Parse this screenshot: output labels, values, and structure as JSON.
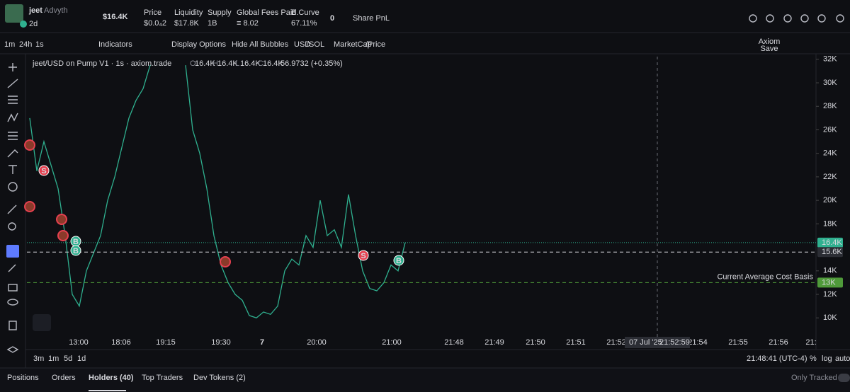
{
  "header": {
    "name": "jeet",
    "handle": "Advyth",
    "age": "2d",
    "market_cap": "$16.4K",
    "stats": [
      {
        "label": "Price",
        "value": "$0.0₄2"
      },
      {
        "label": "Liquidity",
        "value": "$17.8K"
      },
      {
        "label": "Supply",
        "value": "1B"
      },
      {
        "label": "Global Fees Paid",
        "value": "≡ 8.02"
      },
      {
        "label": "B.Curve",
        "value": "67.11%"
      }
    ],
    "watch_count": "0",
    "share": "Share PnL"
  },
  "toolbar": {
    "intervals": [
      "1m",
      "24h",
      "1s"
    ],
    "indicators": "Indicators",
    "display": "Display Options",
    "hide": "Hide All Bubbles",
    "currency": [
      "USD",
      "/SOL"
    ],
    "mode": [
      "MarketCap",
      "/Price"
    ],
    "layout": "Axiom",
    "save": "Save"
  },
  "chart_data": {
    "type": "line",
    "title": "jeet/USD on Pump V1 · 1s · axiom.trade",
    "ohlc": [
      {
        "key": "O",
        "value": "16.4K"
      },
      {
        "key": "H",
        "value": "16.4K"
      },
      {
        "key": "L",
        "value": "16.4K"
      },
      {
        "key": "C",
        "value": "16.4K"
      }
    ],
    "change": "56.9732 (+0.35%)",
    "color": "#2fb08f",
    "values": [
      27000,
      22500,
      25000,
      23000,
      21000,
      17000,
      12000,
      11000,
      14000,
      15500,
      17000,
      20000,
      22000,
      24500,
      27000,
      28500,
      29500,
      31500,
      null,
      null,
      null,
      null,
      31500,
      26000,
      24000,
      21000,
      17000,
      14500,
      13000,
      12000,
      11500,
      10200,
      10000,
      10500,
      10300,
      11000,
      14000,
      15000,
      14500,
      17000,
      16000,
      20000,
      17000,
      17500,
      16000,
      20500,
      17000,
      14000,
      12500,
      12300,
      13000,
      14500,
      14000,
      16400
    ],
    "ylim": [
      8750,
      32350
    ],
    "yticks": [
      {
        "value": 10000,
        "label": "10K"
      },
      {
        "value": 12000,
        "label": "12K"
      },
      {
        "value": 14000,
        "label": "14K"
      },
      {
        "value": 18000,
        "label": "18K"
      },
      {
        "value": 20000,
        "label": "20K"
      },
      {
        "value": 22000,
        "label": "22K"
      },
      {
        "value": 24000,
        "label": "24K"
      },
      {
        "value": 26000,
        "label": "26K"
      },
      {
        "value": 28000,
        "label": "28K"
      },
      {
        "value": 30000,
        "label": "30K"
      },
      {
        "value": 32000,
        "label": "32K"
      }
    ],
    "xtick_labels": [
      "13:00",
      "18:06",
      "19:15",
      "19:30",
      "7",
      "20:00",
      "21:00",
      "21:48",
      "21:49",
      "21:50",
      "21:51",
      "21:52",
      "21:54",
      "21:55",
      "21:56",
      "21:"
    ],
    "price_lines": [
      {
        "value": 16400,
        "label": "16.4K",
        "color": "#2fb08f"
      },
      {
        "value": 15600,
        "label": "15.6K",
        "color": "#d8d9de"
      },
      {
        "value": 13000,
        "label": "13K",
        "color": "#4f9a3a"
      }
    ],
    "cost_basis_label": "Current Average Cost Basis",
    "crosshair": [
      "07 Jul '25",
      "21:52:59"
    ],
    "bubbles": [
      "S",
      "B",
      "B",
      "S",
      "B"
    ]
  },
  "footer": {
    "ranges": [
      "3m",
      "1m",
      "5d",
      "1d"
    ],
    "clock": "21:48:41 (UTC-4)",
    "scale": [
      "%",
      "log",
      "auto"
    ],
    "tabs": [
      "Positions",
      "Orders",
      "Holders (40)",
      "Top Traders",
      "Dev Tokens (2)"
    ],
    "only_tracked": "Only Tracked"
  }
}
